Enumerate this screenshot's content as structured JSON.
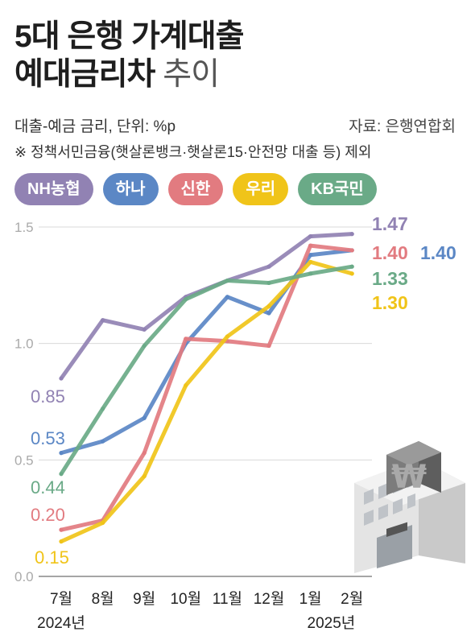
{
  "title": {
    "line1": "5대 은행 가계대출",
    "line2": "예대금리차",
    "line2_light": "추이"
  },
  "subtitle": "대출-예금 금리, 단위: %p",
  "source": "자료: 은행연합회",
  "note": "※ 정책서민금융(햇살론뱅크·햇살론15·안전망 대출 등) 제외",
  "legend": [
    {
      "label": "NH농협",
      "color": "#9182b3"
    },
    {
      "label": "하나",
      "color": "#5b87c5"
    },
    {
      "label": "신한",
      "color": "#e27b80"
    },
    {
      "label": "우리",
      "color": "#f0c419"
    },
    {
      "label": "KB국민",
      "color": "#6aaa87"
    }
  ],
  "year_start": "2024년",
  "year_end": "2025년",
  "chart_data": {
    "type": "line",
    "categories": [
      "7월",
      "8월",
      "9월",
      "10월",
      "11월",
      "12월",
      "1월",
      "2월"
    ],
    "ylim": [
      0,
      1.5
    ],
    "yticks": [
      "0.0",
      "0.5",
      "1.0",
      "1.5"
    ],
    "grid": true,
    "series": [
      {
        "name": "NH농협",
        "color": "#9182b3",
        "values": [
          0.85,
          1.1,
          1.06,
          1.2,
          1.27,
          1.33,
          1.46,
          1.47
        ],
        "start_label": "0.85",
        "end_label": "1.47"
      },
      {
        "name": "하나",
        "color": "#5b87c5",
        "values": [
          0.53,
          0.58,
          0.68,
          1.0,
          1.2,
          1.13,
          1.38,
          1.4
        ],
        "start_label": "0.53",
        "end_label": "1.40"
      },
      {
        "name": "신한",
        "color": "#e27b80",
        "values": [
          0.2,
          0.24,
          0.53,
          1.02,
          1.01,
          0.99,
          1.42,
          1.4
        ],
        "start_label": "0.20",
        "end_label": "1.40"
      },
      {
        "name": "우리",
        "color": "#f0c419",
        "values": [
          0.15,
          0.23,
          0.43,
          0.82,
          1.03,
          1.16,
          1.35,
          1.3
        ],
        "start_label": "0.15",
        "end_label": "1.30"
      },
      {
        "name": "KB국민",
        "color": "#6aaa87",
        "values": [
          0.44,
          0.72,
          0.99,
          1.19,
          1.27,
          1.26,
          1.3,
          1.33
        ],
        "start_label": "0.44",
        "end_label": "1.33"
      }
    ]
  }
}
